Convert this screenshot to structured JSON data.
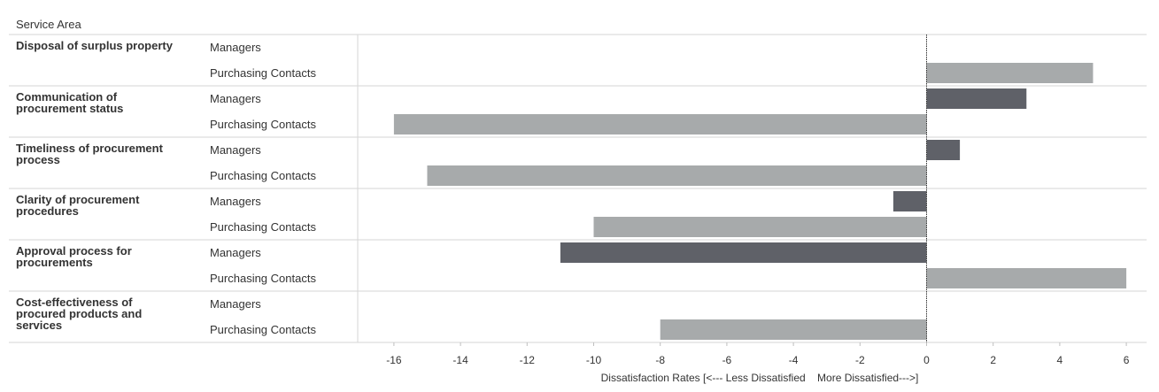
{
  "chart_data": {
    "type": "bar",
    "orientation": "horizontal",
    "header": "Service Area",
    "xlabel": "Dissatisfaction Rates [<--- Less Dissatisfied    More Dissatisfied--->]",
    "xlim": [
      -17,
      6.7
    ],
    "xticks": [
      -16,
      -14,
      -12,
      -10,
      -8,
      -6,
      -4,
      -2,
      0,
      2,
      4,
      6
    ],
    "grid": false,
    "colors": {
      "Managers": "#5f6168",
      "Purchasing Contacts": "#a7aaab"
    },
    "categories": [
      {
        "label": [
          "Disposal of surplus property"
        ],
        "bars": [
          {
            "group": "Managers",
            "value": 0
          },
          {
            "group": "Purchasing Contacts",
            "value": 5
          }
        ]
      },
      {
        "label": [
          "Communication of",
          "procurement status"
        ],
        "bars": [
          {
            "group": "Managers",
            "value": 3
          },
          {
            "group": "Purchasing Contacts",
            "value": -16
          }
        ]
      },
      {
        "label": [
          "Timeliness of procurement",
          "process"
        ],
        "bars": [
          {
            "group": "Managers",
            "value": 1
          },
          {
            "group": "Purchasing Contacts",
            "value": -15
          }
        ]
      },
      {
        "label": [
          "Clarity of procurement",
          "procedures"
        ],
        "bars": [
          {
            "group": "Managers",
            "value": -1
          },
          {
            "group": "Purchasing Contacts",
            "value": -10
          }
        ]
      },
      {
        "label": [
          "Approval process for",
          "procurements"
        ],
        "bars": [
          {
            "group": "Managers",
            "value": -11
          },
          {
            "group": "Purchasing Contacts",
            "value": 6
          }
        ]
      },
      {
        "label": [
          "Cost-effectiveness of",
          "procured products and",
          "services"
        ],
        "bars": [
          {
            "group": "Managers",
            "value": 0
          },
          {
            "group": "Purchasing Contacts",
            "value": -8
          }
        ]
      }
    ]
  }
}
